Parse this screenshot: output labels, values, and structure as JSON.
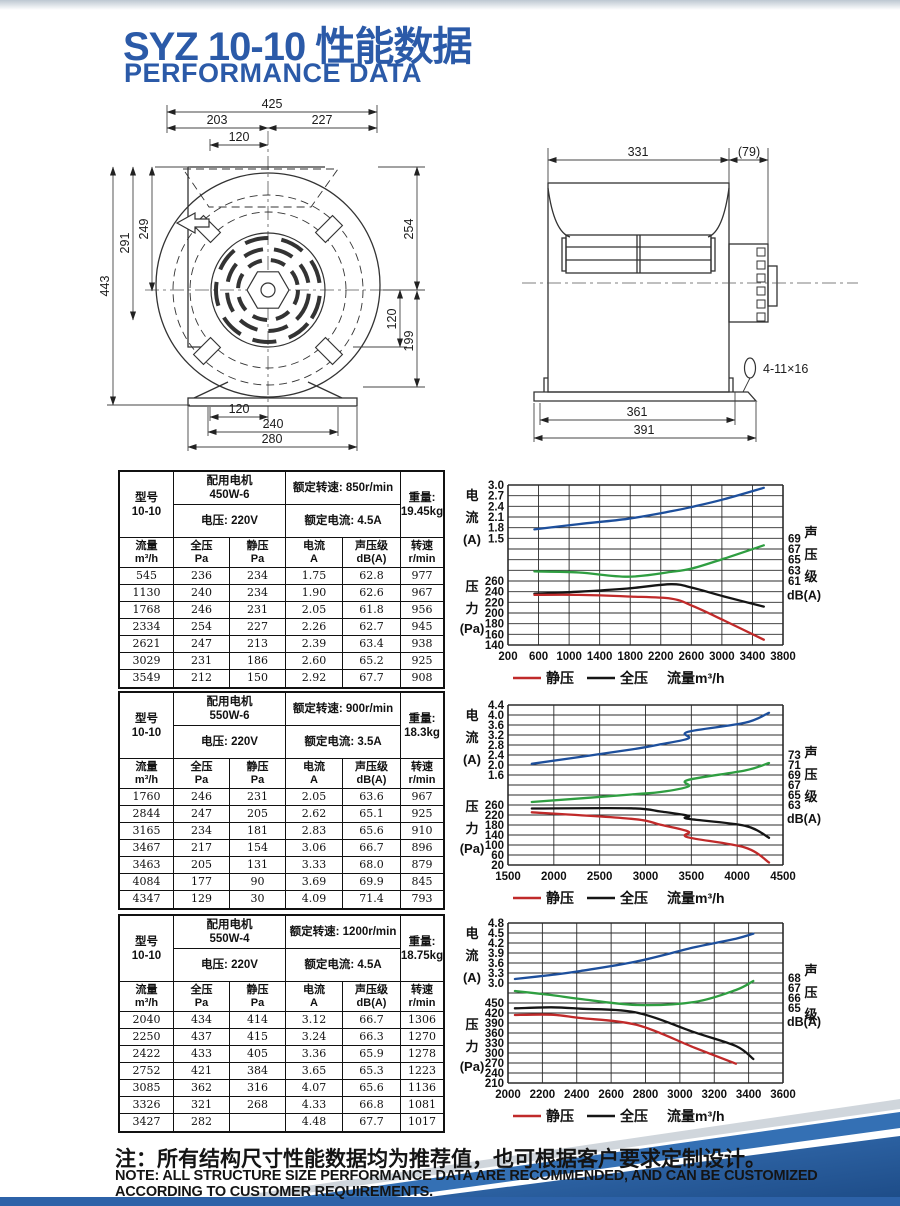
{
  "page": {
    "title": "SYZ 10-10 性能数据",
    "subtitle": "PERFORMANCE DATA"
  },
  "colors": {
    "accent_blue": "#2b5aa8",
    "curve_current": "#1d4f9c",
    "curve_sound": "#2f9e41",
    "curve_total": "#151515",
    "curve_static": "#c02a2a",
    "swoosh_mid": "#3470b4",
    "swoosh_main": "#2f68b0",
    "swoosh_dark": "#1c4a85"
  },
  "drawings": {
    "front": {
      "dims": {
        "total_w": "425",
        "left_w": "203",
        "right_w": "227",
        "top_offset": "120",
        "total_h": "443",
        "h1": "291",
        "h2": "249",
        "r1": "254",
        "r2": "120",
        "r3": "199",
        "b1": "120",
        "b2": "240",
        "b3": "280"
      }
    },
    "side": {
      "dims": {
        "w1": "331",
        "w2": "(79)",
        "b1": "361",
        "b2": "391",
        "slot": "4-11×16"
      }
    }
  },
  "tables": [
    {
      "model_label": "型号",
      "model": "10-10",
      "motor_line1": "配用电机",
      "motor_line2": "450W-6",
      "voltage": "电压: 220V",
      "speed": "额定转速: 850r/min",
      "rated_current": "额定电流: 4.5A",
      "weight_line1": "重量:",
      "weight_line2": "19.45kg",
      "columns": [
        [
          "流量",
          "m³/h"
        ],
        [
          "全压",
          "Pa"
        ],
        [
          "静压",
          "Pa"
        ],
        [
          "电流",
          "A"
        ],
        [
          "声压级",
          "dB(A)"
        ],
        [
          "转速",
          "r/min"
        ]
      ],
      "rows": [
        [
          "545",
          "236",
          "234",
          "1.75",
          "62.8",
          "977"
        ],
        [
          "1130",
          "240",
          "234",
          "1.90",
          "62.6",
          "967"
        ],
        [
          "1768",
          "246",
          "231",
          "2.05",
          "61.8",
          "956"
        ],
        [
          "2334",
          "254",
          "227",
          "2.26",
          "62.7",
          "945"
        ],
        [
          "2621",
          "247",
          "213",
          "2.39",
          "63.4",
          "938"
        ],
        [
          "3029",
          "231",
          "186",
          "2.60",
          "65.2",
          "925"
        ],
        [
          "3549",
          "212",
          "150",
          "2.92",
          "67.7",
          "908"
        ]
      ]
    },
    {
      "model_label": "型号",
      "model": "10-10",
      "motor_line1": "配用电机",
      "motor_line2": "550W-6",
      "voltage": "电压: 220V",
      "speed": "额定转速: 900r/min",
      "rated_current": "额定电流: 3.5A",
      "weight_line1": "重量:",
      "weight_line2": "18.3kg",
      "columns": [
        [
          "流量",
          "m³/h"
        ],
        [
          "全压",
          "Pa"
        ],
        [
          "静压",
          "Pa"
        ],
        [
          "电流",
          "A"
        ],
        [
          "声压级",
          "dB(A)"
        ],
        [
          "转速",
          "r/min"
        ]
      ],
      "rows": [
        [
          "1760",
          "246",
          "231",
          "2.05",
          "63.6",
          "967"
        ],
        [
          "2844",
          "247",
          "205",
          "2.62",
          "65.1",
          "925"
        ],
        [
          "3165",
          "234",
          "181",
          "2.83",
          "65.6",
          "910"
        ],
        [
          "3467",
          "217",
          "154",
          "3.06",
          "66.7",
          "896"
        ],
        [
          "3463",
          "205",
          "131",
          "3.33",
          "68.0",
          "879"
        ],
        [
          "4084",
          "177",
          "90",
          "3.69",
          "69.9",
          "845"
        ],
        [
          "4347",
          "129",
          "30",
          "4.09",
          "71.4",
          "793"
        ]
      ]
    },
    {
      "model_label": "型号",
      "model": "10-10",
      "motor_line1": "配用电机",
      "motor_line2": "550W-4",
      "voltage": "电压: 220V",
      "speed": "额定转速: 1200r/min",
      "rated_current": "额定电流: 4.5A",
      "weight_line1": "重量:",
      "weight_line2": "18.75kg",
      "columns": [
        [
          "流量",
          "m³/h"
        ],
        [
          "全压",
          "Pa"
        ],
        [
          "静压",
          "Pa"
        ],
        [
          "电流",
          "A"
        ],
        [
          "声压级",
          "dB(A)"
        ],
        [
          "转速",
          "r/min"
        ]
      ],
      "rows": [
        [
          "2040",
          "434",
          "414",
          "3.12",
          "66.7",
          "1306"
        ],
        [
          "2250",
          "437",
          "415",
          "3.24",
          "66.3",
          "1270"
        ],
        [
          "2422",
          "433",
          "405",
          "3.36",
          "65.9",
          "1278"
        ],
        [
          "2752",
          "421",
          "384",
          "3.65",
          "65.3",
          "1223"
        ],
        [
          "3085",
          "362",
          "316",
          "4.07",
          "65.6",
          "1136"
        ],
        [
          "3326",
          "321",
          "268",
          "4.33",
          "66.8",
          "1081"
        ],
        [
          "3427",
          "282",
          "",
          "4.48",
          "67.7",
          "1017"
        ]
      ]
    }
  ],
  "chart_data": [
    {
      "type": "line",
      "x_ticks": [
        200,
        600,
        1000,
        1400,
        1800,
        2200,
        2600,
        3000,
        3400,
        3800
      ],
      "grid_rows": 15,
      "scales": {
        "current": {
          "top_value": 3.0,
          "per_row": 0.3,
          "top_row": 0,
          "ticks": [
            "3.0",
            "2.7",
            "2.4",
            "2.1",
            "1.8",
            "1.5"
          ]
        },
        "pressure": {
          "top_value": 260,
          "per_row": 20,
          "top_row": 9,
          "ticks": [
            "260",
            "240",
            "220",
            "200",
            "180",
            "160",
            "140"
          ]
        },
        "sound": {
          "top_value": 69,
          "per_row": 2,
          "top_row": 5,
          "ticks": [
            "69",
            "67",
            "65",
            "63",
            "61"
          ]
        }
      },
      "axis_titles": {
        "current": [
          "电",
          "流",
          "(A)"
        ],
        "pressure": [
          "压",
          "力",
          "(Pa)"
        ],
        "sound": [
          "声",
          "压",
          "级"
        ],
        "sound_unit": "dB(A)"
      },
      "legend": [
        "静压",
        "全压",
        "流量m³/h"
      ],
      "series": [
        {
          "name": "电流",
          "scale": "current",
          "color": "curve_current",
          "points": [
            [
              545,
              1.75
            ],
            [
              1130,
              1.9
            ],
            [
              1768,
              2.05
            ],
            [
              2334,
              2.26
            ],
            [
              2621,
              2.39
            ],
            [
              3029,
              2.6
            ],
            [
              3549,
              2.92
            ]
          ]
        },
        {
          "name": "声压级",
          "scale": "sound",
          "color": "curve_sound",
          "points": [
            [
              545,
              62.8
            ],
            [
              1130,
              62.6
            ],
            [
              1768,
              61.8
            ],
            [
              2334,
              62.7
            ],
            [
              2621,
              63.4
            ],
            [
              3029,
              65.2
            ],
            [
              3549,
              67.7
            ]
          ]
        },
        {
          "name": "全压",
          "scale": "pressure",
          "color": "curve_total",
          "points": [
            [
              545,
              236
            ],
            [
              1130,
              240
            ],
            [
              1768,
              246
            ],
            [
              2334,
              254
            ],
            [
              2621,
              247
            ],
            [
              3029,
              231
            ],
            [
              3549,
              212
            ]
          ]
        },
        {
          "name": "静压",
          "scale": "pressure",
          "color": "curve_static",
          "points": [
            [
              545,
              234
            ],
            [
              1130,
              234
            ],
            [
              1768,
              231
            ],
            [
              2334,
              227
            ],
            [
              2621,
              213
            ],
            [
              3029,
              186
            ],
            [
              3549,
              150
            ]
          ]
        }
      ]
    },
    {
      "type": "line",
      "x_ticks": [
        1500,
        2000,
        2500,
        3000,
        3500,
        4000,
        4500
      ],
      "grid_rows": 16,
      "scales": {
        "current": {
          "top_value": 4.4,
          "per_row": 0.4,
          "top_row": 0,
          "ticks": [
            "4.4",
            "4.0",
            "3.6",
            "3.2",
            "2.8",
            "2.4",
            "2.0",
            "1.6"
          ]
        },
        "pressure": {
          "top_value": 260,
          "per_row": 40,
          "top_row": 10,
          "ticks": [
            "260",
            "220",
            "180",
            "140",
            "100",
            "60",
            "20"
          ]
        },
        "sound": {
          "top_value": 73,
          "per_row": 2,
          "top_row": 5,
          "ticks": [
            "73",
            "71",
            "69",
            "67",
            "65",
            "63"
          ]
        }
      },
      "axis_titles": {
        "current": [
          "电",
          "流",
          "(A)"
        ],
        "pressure": [
          "压",
          "力",
          "(Pa)"
        ],
        "sound": [
          "声",
          "压",
          "级"
        ],
        "sound_unit": "dB(A)"
      },
      "legend": [
        "静压",
        "全压",
        "流量m³/h"
      ],
      "series": [
        {
          "name": "电流",
          "scale": "current",
          "color": "curve_current",
          "points": [
            [
              1760,
              2.05
            ],
            [
              2844,
              2.62
            ],
            [
              3165,
              2.83
            ],
            [
              3467,
              3.06
            ],
            [
              3463,
              3.33
            ],
            [
              4084,
              3.69
            ],
            [
              4347,
              4.09
            ]
          ]
        },
        {
          "name": "声压级",
          "scale": "sound",
          "color": "curve_sound",
          "points": [
            [
              1760,
              63.6
            ],
            [
              2844,
              65.1
            ],
            [
              3165,
              65.6
            ],
            [
              3467,
              66.7
            ],
            [
              3463,
              68.0
            ],
            [
              4084,
              69.9
            ],
            [
              4347,
              71.4
            ]
          ]
        },
        {
          "name": "全压",
          "scale": "pressure",
          "color": "curve_total",
          "points": [
            [
              1760,
              246
            ],
            [
              2844,
              247
            ],
            [
              3165,
              234
            ],
            [
              3467,
              217
            ],
            [
              3463,
              205
            ],
            [
              4084,
              177
            ],
            [
              4347,
              129
            ]
          ]
        },
        {
          "name": "静压",
          "scale": "pressure",
          "color": "curve_static",
          "points": [
            [
              1760,
              231
            ],
            [
              2844,
              205
            ],
            [
              3165,
              181
            ],
            [
              3467,
              154
            ],
            [
              3463,
              131
            ],
            [
              4084,
              90
            ],
            [
              4347,
              30
            ]
          ]
        }
      ]
    },
    {
      "type": "line",
      "x_ticks": [
        2000,
        2200,
        2400,
        2600,
        2800,
        3000,
        3200,
        3400,
        3600
      ],
      "grid_rows": 16,
      "scales": {
        "current": {
          "top_value": 4.8,
          "per_row": 0.3,
          "top_row": 0,
          "ticks": [
            "4.8",
            "4.5",
            "4.2",
            "3.9",
            "3.6",
            "3.3",
            "3.0"
          ]
        },
        "pressure": {
          "top_value": 450,
          "per_row": 30,
          "top_row": 8,
          "ticks": [
            "450",
            "420",
            "390",
            "360",
            "330",
            "300",
            "270",
            "240",
            "210"
          ]
        },
        "sound": {
          "top_value": 68,
          "per_row": 1,
          "top_row": 5.5,
          "ticks": [
            "68",
            "67",
            "66",
            "65"
          ]
        }
      },
      "axis_titles": {
        "current": [
          "电",
          "流",
          "(A)"
        ],
        "pressure": [
          "压",
          "力",
          "(Pa)"
        ],
        "sound": [
          "声",
          "压",
          "级"
        ],
        "sound_unit": "dB(A)"
      },
      "legend": [
        "静压",
        "全压",
        "流量m³/h"
      ],
      "series": [
        {
          "name": "电流",
          "scale": "current",
          "color": "curve_current",
          "points": [
            [
              2040,
              3.12
            ],
            [
              2250,
              3.24
            ],
            [
              2422,
              3.36
            ],
            [
              2752,
              3.65
            ],
            [
              3085,
              4.07
            ],
            [
              3326,
              4.33
            ],
            [
              3427,
              4.48
            ]
          ]
        },
        {
          "name": "声压级",
          "scale": "sound",
          "color": "curve_sound",
          "points": [
            [
              2040,
              66.7
            ],
            [
              2250,
              66.3
            ],
            [
              2422,
              65.9
            ],
            [
              2752,
              65.3
            ],
            [
              3085,
              65.6
            ],
            [
              3326,
              66.8
            ],
            [
              3427,
              67.7
            ]
          ]
        },
        {
          "name": "全压",
          "scale": "pressure",
          "color": "curve_total",
          "points": [
            [
              2040,
              434
            ],
            [
              2250,
              437
            ],
            [
              2422,
              433
            ],
            [
              2752,
              421
            ],
            [
              3085,
              362
            ],
            [
              3326,
              321
            ],
            [
              3427,
              282
            ]
          ]
        },
        {
          "name": "静压",
          "scale": "pressure",
          "color": "curve_static",
          "points": [
            [
              2040,
              414
            ],
            [
              2250,
              415
            ],
            [
              2422,
              405
            ],
            [
              2752,
              384
            ],
            [
              3085,
              316
            ],
            [
              3326,
              268
            ]
          ]
        }
      ]
    }
  ],
  "notes": {
    "zh": "注：所有结构尺寸性能数据均为推荐值，也可根据客户要求定制设计。",
    "en": "NOTE: ALL STRUCTURE SIZE PERFORMANCE DATA ARE RECOMMENDED, AND CAN BE CUSTOMIZED ACCORDING TO CUSTOMER REQUIREMENTS."
  }
}
